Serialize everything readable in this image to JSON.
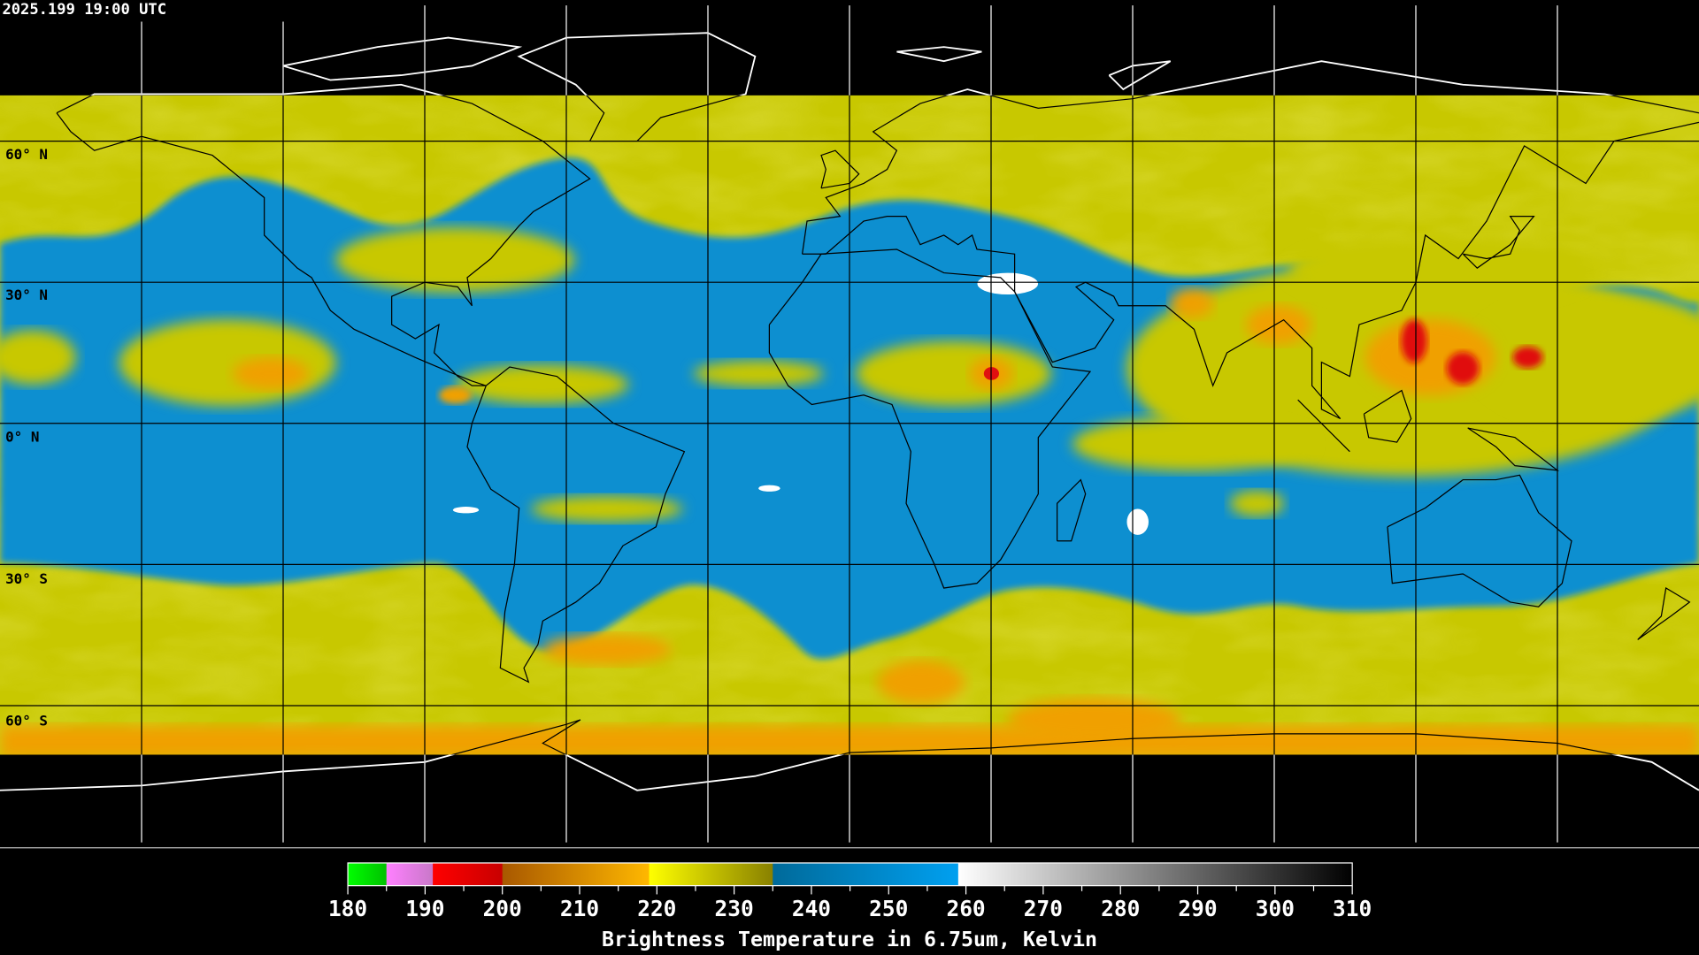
{
  "header": {
    "timestamp": "2025.199 19:00 UTC"
  },
  "map": {
    "projection": "equirectangular",
    "grid_spacing_degrees": 30,
    "lat_labels": [
      "60° N",
      "30° N",
      "0° N",
      "30° S",
      "60° S"
    ],
    "colors": {
      "background": "#000000",
      "cold_cloud_yellow": "#c8c800",
      "dry_blue": "#0a8fd0",
      "orange": "#f0a000",
      "red": "#e01010",
      "grid": "#000000",
      "coast_inside": "#000000",
      "coast_outside": "#ffffff"
    }
  },
  "colorbar": {
    "min": 180,
    "max": 310,
    "tick_labels": [
      "180",
      "190",
      "200",
      "210",
      "220",
      "230",
      "240",
      "250",
      "260",
      "270",
      "280",
      "290",
      "300",
      "310"
    ],
    "title": "Brightness Temperature in 6.75um, Kelvin",
    "segments": [
      {
        "from": 180,
        "to": 185,
        "start": "#00ff00",
        "end": "#00c000"
      },
      {
        "from": 185,
        "to": 191,
        "start": "#ff80ff",
        "end": "#c878c8"
      },
      {
        "from": 191,
        "to": 200,
        "start": "#ff0000",
        "end": "#c80000"
      },
      {
        "from": 200,
        "to": 219,
        "start": "#a85800",
        "end": "#ffb800"
      },
      {
        "from": 219,
        "to": 235,
        "start": "#ffff00",
        "end": "#888000"
      },
      {
        "from": 235,
        "to": 259,
        "start": "#006a9a",
        "end": "#00a0f0"
      },
      {
        "from": 259,
        "to": 310,
        "start": "#ffffff",
        "end": "#000000"
      }
    ]
  }
}
